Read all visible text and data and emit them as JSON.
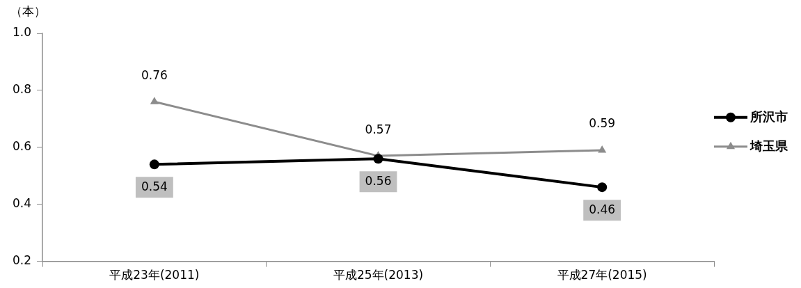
{
  "chart_data": {
    "type": "line",
    "ylabel": "（本）",
    "categories": [
      "平成23年(2011)",
      "平成25年(2013)",
      "平成27年(2015)"
    ],
    "series": [
      {
        "name": "所沢市",
        "color": "#000000",
        "values": [
          0.54,
          0.56,
          0.46
        ],
        "marker": "circle"
      },
      {
        "name": "埼玉県",
        "color": "#8c8c8c",
        "values": [
          0.76,
          0.57,
          0.59
        ],
        "marker": "triangle"
      }
    ],
    "ylim": [
      0.2,
      1.0
    ],
    "yticks": [
      0.2,
      0.4,
      0.6,
      0.8,
      {
        "value": 1.0,
        "label": "1.0"
      }
    ],
    "grid": false,
    "legend": "right",
    "data_labels": true,
    "line_style": "solid"
  }
}
